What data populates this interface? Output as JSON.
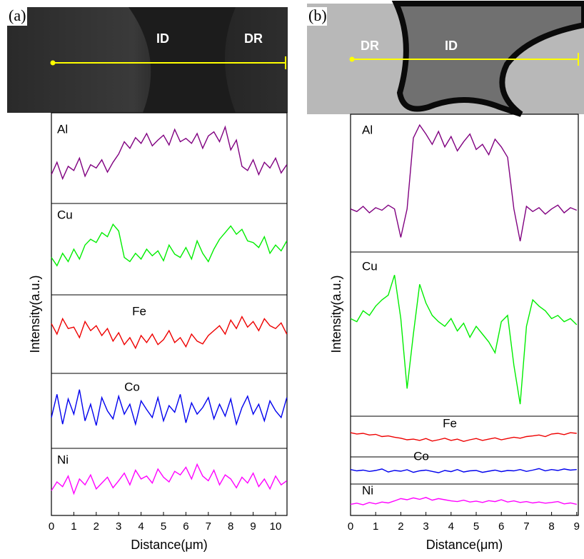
{
  "chart_data": [
    {
      "type": "line",
      "panel_label": "(a)",
      "image_labels": [
        "ID",
        "DR"
      ],
      "xlabel": "Distance(μm)",
      "ylabel": "Intensity(a.u.)",
      "x": [
        0,
        0.25,
        0.5,
        0.75,
        1,
        1.25,
        1.5,
        1.75,
        2,
        2.25,
        2.5,
        2.75,
        3,
        3.25,
        3.5,
        3.75,
        4,
        4.25,
        4.5,
        4.75,
        5,
        5.25,
        5.5,
        5.75,
        6,
        6.25,
        6.5,
        6.75,
        7,
        7.25,
        7.5,
        7.75,
        8,
        8.25,
        8.5,
        8.75,
        9,
        9.25,
        9.5,
        9.75,
        10,
        10.25,
        10.5
      ],
      "xlim": [
        0,
        10.5
      ],
      "xticks": [
        0,
        1,
        2,
        3,
        4,
        5,
        6,
        7,
        8,
        9,
        10
      ],
      "ylim": [
        0,
        100
      ],
      "series": [
        {
          "name": "Al",
          "color": "#800080",
          "values": [
            30,
            45,
            25,
            40,
            35,
            50,
            28,
            42,
            38,
            48,
            33,
            45,
            55,
            70,
            62,
            75,
            68,
            80,
            65,
            72,
            78,
            66,
            85,
            70,
            74,
            68,
            80,
            62,
            77,
            82,
            70,
            88,
            60,
            72,
            40,
            35,
            48,
            30,
            45,
            38,
            50,
            32,
            42
          ]
        },
        {
          "name": "Cu",
          "color": "#00ee00",
          "values": [
            40,
            30,
            45,
            35,
            50,
            38,
            55,
            62,
            58,
            70,
            65,
            80,
            72,
            40,
            35,
            45,
            38,
            50,
            42,
            48,
            36,
            55,
            44,
            40,
            52,
            38,
            60,
            45,
            35,
            50,
            62,
            70,
            78,
            68,
            74,
            60,
            58,
            52,
            65,
            45,
            55,
            48,
            60
          ]
        },
        {
          "name": "Fe",
          "color": "#ee0000",
          "values": [
            65,
            50,
            72,
            58,
            60,
            45,
            68,
            55,
            62,
            48,
            58,
            40,
            52,
            35,
            45,
            30,
            48,
            38,
            50,
            35,
            42,
            55,
            38,
            45,
            32,
            50,
            40,
            36,
            48,
            55,
            62,
            50,
            70,
            58,
            75,
            60,
            68,
            55,
            72,
            62,
            58,
            66,
            50
          ]
        },
        {
          "name": "Co",
          "color": "#0000ee",
          "values": [
            40,
            75,
            30,
            68,
            45,
            82,
            35,
            60,
            28,
            70,
            50,
            38,
            72,
            45,
            60,
            30,
            65,
            52,
            40,
            70,
            35,
            58,
            48,
            75,
            32,
            62,
            45,
            55,
            70,
            38,
            60,
            42,
            68,
            30,
            55,
            72,
            45,
            60,
            35,
            65,
            50,
            40,
            70
          ]
        },
        {
          "name": "Ni",
          "color": "#ff00ff",
          "values": [
            35,
            50,
            42,
            60,
            30,
            55,
            45,
            62,
            38,
            48,
            58,
            40,
            52,
            65,
            45,
            70,
            55,
            60,
            48,
            72,
            58,
            50,
            68,
            62,
            75,
            55,
            80,
            60,
            52,
            70,
            45,
            62,
            55,
            40,
            58,
            48,
            65,
            42,
            55,
            38,
            60,
            45,
            52
          ]
        }
      ]
    },
    {
      "type": "line",
      "panel_label": "(b)",
      "image_labels": [
        "DR",
        "ID"
      ],
      "xlabel": "Distance(μm)",
      "ylabel": "Intensity(a.u.)",
      "x": [
        0,
        0.25,
        0.5,
        0.75,
        1,
        1.25,
        1.5,
        1.75,
        2,
        2.25,
        2.5,
        2.75,
        3,
        3.25,
        3.5,
        3.75,
        4,
        4.25,
        4.5,
        4.75,
        5,
        5.25,
        5.5,
        5.75,
        6,
        6.25,
        6.5,
        6.75,
        7,
        7.25,
        7.5,
        7.75,
        8,
        8.25,
        8.5,
        8.75,
        9
      ],
      "xlim": [
        0,
        9
      ],
      "xticks": [
        0,
        1,
        2,
        3,
        4,
        5,
        6,
        7,
        8,
        9
      ],
      "ylim": [
        0,
        100
      ],
      "series": [
        {
          "name": "Al",
          "color": "#800080",
          "values": [
            30,
            28,
            32,
            27,
            31,
            29,
            33,
            30,
            8,
            30,
            85,
            95,
            88,
            80,
            90,
            78,
            86,
            75,
            82,
            88,
            76,
            80,
            72,
            84,
            78,
            70,
            30,
            5,
            32,
            28,
            31,
            26,
            30,
            33,
            27,
            31,
            29
          ]
        },
        {
          "name": "Cu",
          "color": "#00ee00",
          "values": [
            60,
            58,
            65,
            62,
            68,
            72,
            75,
            88,
            60,
            15,
            50,
            82,
            70,
            62,
            58,
            55,
            60,
            52,
            57,
            48,
            55,
            50,
            45,
            38,
            58,
            62,
            30,
            5,
            55,
            72,
            68,
            65,
            60,
            62,
            58,
            60,
            56
          ]
        },
        {
          "name": "Fe",
          "color": "#ee0000",
          "values": [
            62,
            58,
            60,
            55,
            57,
            50,
            52,
            48,
            45,
            40,
            42,
            38,
            44,
            36,
            40,
            45,
            38,
            42,
            35,
            40,
            44,
            38,
            42,
            46,
            40,
            44,
            48,
            45,
            50,
            52,
            55,
            50,
            58,
            60,
            56,
            62,
            60
          ]
        },
        {
          "name": "Co",
          "color": "#0000ee",
          "values": [
            55,
            48,
            52,
            45,
            50,
            58,
            42,
            50,
            46,
            54,
            40,
            48,
            52,
            45,
            38,
            50,
            44,
            55,
            42,
            48,
            50,
            40,
            46,
            52,
            44,
            50,
            48,
            55,
            45,
            52,
            60,
            48,
            55,
            50,
            58,
            52,
            55
          ]
        },
        {
          "name": "Ni",
          "color": "#ff00ff",
          "values": [
            30,
            35,
            28,
            38,
            32,
            40,
            36,
            45,
            55,
            50,
            58,
            52,
            60,
            48,
            55,
            50,
            45,
            42,
            48,
            40,
            44,
            38,
            46,
            42,
            50,
            40,
            45,
            38,
            42,
            36,
            40,
            35,
            38,
            42,
            32,
            36,
            30
          ]
        }
      ]
    }
  ]
}
